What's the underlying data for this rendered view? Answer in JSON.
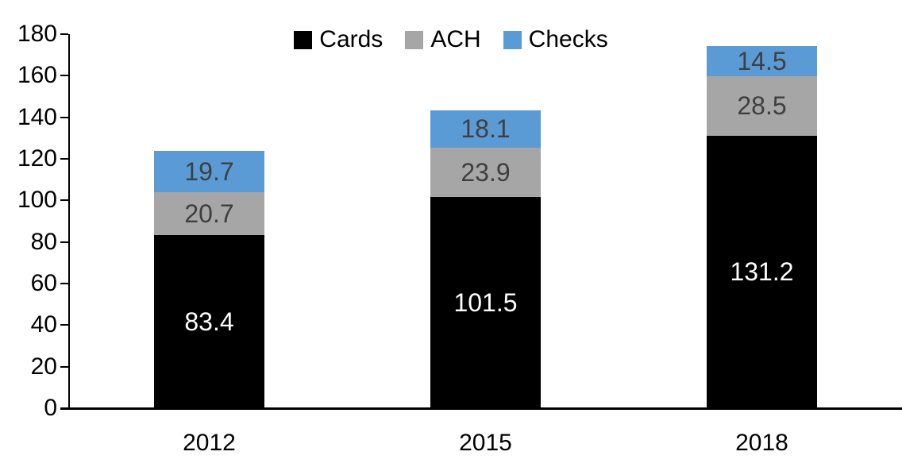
{
  "chart_data": {
    "type": "bar",
    "stacked": true,
    "title": "",
    "categories": [
      "2012",
      "2015",
      "2018"
    ],
    "series": [
      {
        "name": "Cards",
        "values": [
          83.4,
          101.5,
          131.2
        ],
        "color": "#000000",
        "label_color": "#FFFFFF"
      },
      {
        "name": "ACH",
        "values": [
          20.7,
          23.9,
          28.5
        ],
        "color": "#A6A6A6",
        "label_color": "#3F3F3F"
      },
      {
        "name": "Checks",
        "values": [
          19.7,
          18.1,
          14.5
        ],
        "color": "#5B9BD5",
        "label_color": "#3F3F3F"
      }
    ],
    "totals": [
      123.8,
      143.5,
      174.2
    ],
    "yticks": [
      0,
      20,
      40,
      60,
      80,
      100,
      120,
      140,
      160,
      180
    ],
    "ylim": [
      0,
      180
    ],
    "xlabel": "",
    "ylabel": "",
    "grid": false,
    "legend_position": "top-center",
    "axis_color": "#000000",
    "background": "#FFFFFF"
  }
}
